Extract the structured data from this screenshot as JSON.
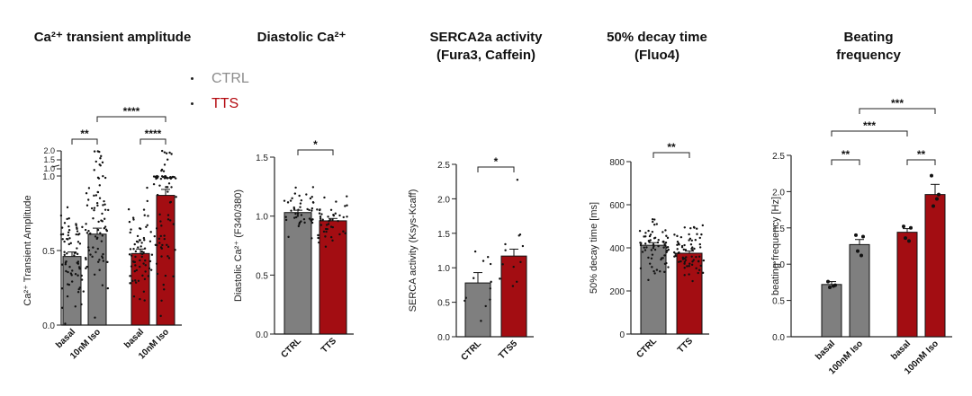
{
  "panel_titles": [
    {
      "line1": "Ca²⁺ transient amplitude",
      "line2": ""
    },
    {
      "line1": "Diastolic Ca²⁺",
      "line2": ""
    },
    {
      "line1": "SERCA2a activity",
      "line2": "(Fura3, Caffein)"
    },
    {
      "line1": "50% decay time",
      "line2": "(Fluo4)"
    },
    {
      "line1": "Beating",
      "line2": "frequency"
    }
  ],
  "legend": [
    {
      "label": "CTRL",
      "color": "#8c8c8c"
    },
    {
      "label": "TTS",
      "color": "#b40a10"
    }
  ],
  "colors": {
    "ctrl": "#7f7f7f",
    "tts": "#a30d12",
    "ctrl_text": "#8c8c8c",
    "tts_text": "#b40a10"
  },
  "chart_data": [
    {
      "type": "bar",
      "title": "Ca²⁺ transient amplitude",
      "ylabel": "Ca²⁺ Transient Amplitude",
      "categories": [
        "basal",
        "10nM Iso",
        "basal",
        "10nM Iso"
      ],
      "groups": [
        "CTRL",
        "CTRL",
        "TTS",
        "TTS"
      ],
      "values": [
        0.46,
        0.61,
        0.48,
        0.87
      ],
      "errors": [
        0.03,
        0.04,
        0.03,
        0.04
      ],
      "ylim": [
        0,
        1.0
      ],
      "yticks": [
        "0.0",
        "0.5",
        "1.0"
      ],
      "broken_ticks": [
        "1.0",
        "1.5",
        "2.0"
      ],
      "significance": [
        {
          "from": 0,
          "to": 1,
          "label": "**"
        },
        {
          "from": 2,
          "to": 3,
          "label": "****"
        },
        {
          "from": 1,
          "to": 3,
          "label": "****"
        }
      ]
    },
    {
      "type": "bar",
      "title": "Diastolic Ca²⁺",
      "ylabel": "Diastolic Ca²⁺ (F340/380)",
      "categories": [
        "CTRL",
        "TTS"
      ],
      "groups": [
        "CTRL",
        "TTS"
      ],
      "values": [
        1.03,
        0.96
      ],
      "errors": [
        0.02,
        0.02
      ],
      "ylim": [
        0,
        1.5
      ],
      "yticks": [
        "0.0",
        "0.5",
        "1.0",
        "1.5"
      ],
      "significance": [
        {
          "from": 0,
          "to": 1,
          "label": "*"
        }
      ]
    },
    {
      "type": "bar",
      "title": "SERCA2a activity (Fura3, Caffein)",
      "ylabel": "SERCA activity (Ksys-Kcaff)",
      "categories": [
        "CTRL",
        "TTS5"
      ],
      "groups": [
        "CTRL",
        "TTS"
      ],
      "values": [
        0.78,
        1.17
      ],
      "errors": [
        0.15,
        0.1
      ],
      "ylim": [
        0,
        2.5
      ],
      "yticks": [
        "0.0",
        "0.5",
        "1.0",
        "1.5",
        "2.0",
        "2.5"
      ],
      "significance": [
        {
          "from": 0,
          "to": 1,
          "label": "*"
        }
      ]
    },
    {
      "type": "bar",
      "title": "50% decay time (Fluo4)",
      "ylabel": "50% decay time [ms]",
      "categories": [
        "CTRL",
        "TTS"
      ],
      "groups": [
        "CTRL",
        "TTS"
      ],
      "values": [
        412,
        375
      ],
      "errors": [
        12,
        10
      ],
      "ylim": [
        0,
        800
      ],
      "yticks": [
        "0",
        "200",
        "400",
        "600",
        "800"
      ],
      "significance": [
        {
          "from": 0,
          "to": 1,
          "label": "**"
        }
      ]
    },
    {
      "type": "bar",
      "title": "Beating frequency",
      "ylabel": "beating frequency [Hz]",
      "categories": [
        "basal",
        "100nM Iso",
        "basal",
        "100nM Iso"
      ],
      "groups": [
        "CTRL",
        "CTRL",
        "TTS",
        "TTS"
      ],
      "values": [
        0.72,
        1.27,
        1.44,
        1.96
      ],
      "errors": [
        0.04,
        0.07,
        0.05,
        0.14
      ],
      "points": [
        [
          0.76,
          0.71,
          0.68,
          0.7
        ],
        [
          1.4,
          1.38,
          1.18,
          1.12
        ],
        [
          1.52,
          1.5,
          1.36,
          1.32
        ],
        [
          2.22,
          1.96,
          1.8,
          1.9
        ]
      ],
      "ylim": [
        0,
        2.5
      ],
      "yticks": [
        "0.0",
        "0.5",
        "1.0",
        "1.5",
        "2.0",
        "2.5"
      ],
      "significance": [
        {
          "from": 0,
          "to": 1,
          "label": "**"
        },
        {
          "from": 2,
          "to": 3,
          "label": "**"
        },
        {
          "from": 0,
          "to": 2,
          "label": "***"
        },
        {
          "from": 1,
          "to": 3,
          "label": "***"
        }
      ]
    }
  ]
}
